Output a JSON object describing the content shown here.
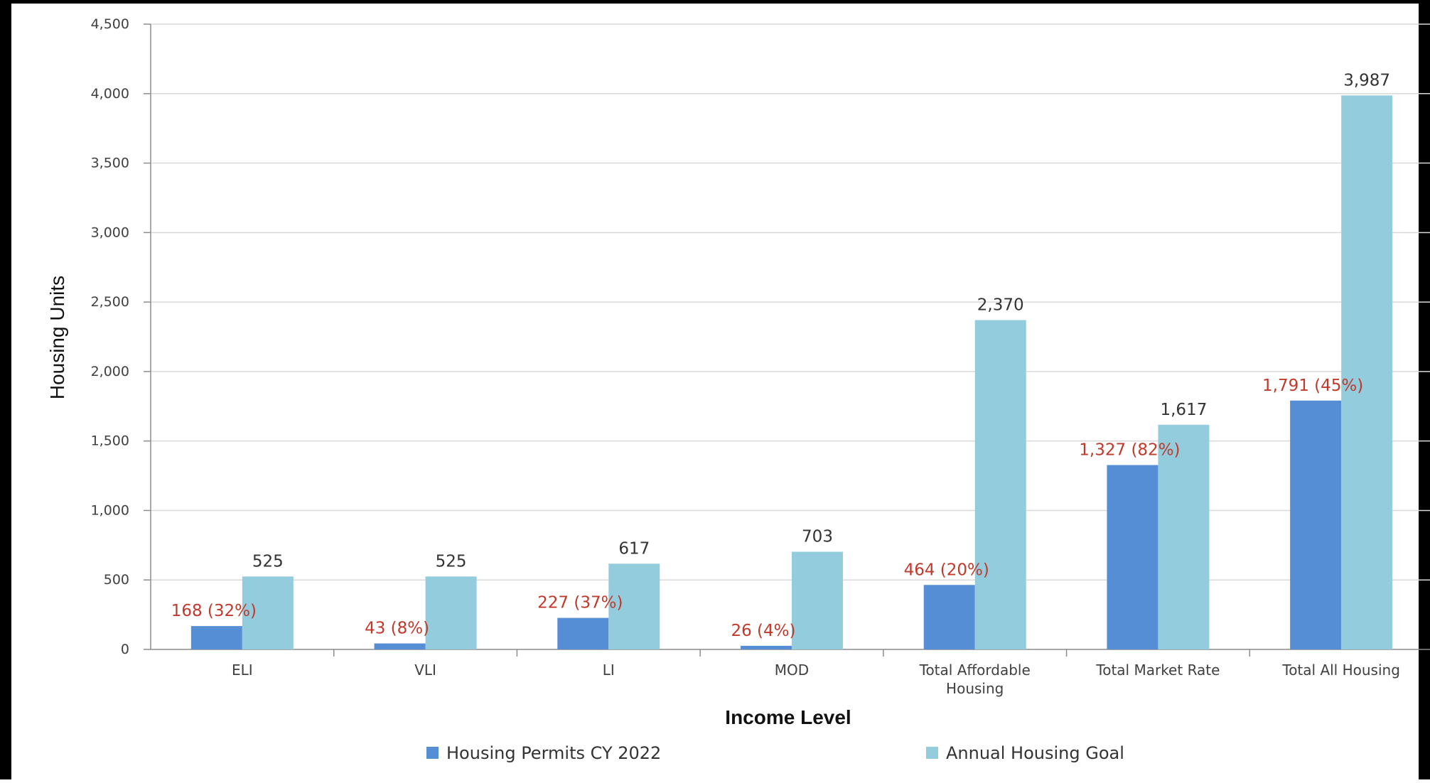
{
  "chart_data": {
    "type": "bar",
    "categories": [
      "ELI",
      "VLI",
      "LI",
      "MOD",
      "Total Affordable Housing",
      "Total Market Rate",
      "Total All Housing"
    ],
    "series": [
      {
        "name": "Housing Permits CY 2022",
        "values": [
          168,
          43,
          227,
          26,
          464,
          1327,
          1791
        ],
        "labels": [
          "168 (32%)",
          "43 (8%)",
          "227 (37%)",
          "26 (4%)",
          "464 (20%)",
          "1,327 (82%)",
          "1,791 (45%)"
        ],
        "color": "#568ed6"
      },
      {
        "name": "Annual Housing Goal",
        "values": [
          525,
          525,
          617,
          703,
          2370,
          1617,
          3987
        ],
        "labels": [
          "525",
          "525",
          "617",
          "703",
          "2,370",
          "1,617",
          "3,987"
        ],
        "color": "#93cddd"
      }
    ],
    "xlabel": "Income Level",
    "ylabel": "Housing Units",
    "ylim": [
      0,
      4500
    ],
    "yticks": [
      0,
      500,
      1000,
      1500,
      2000,
      2500,
      3000,
      3500,
      4000,
      4500
    ],
    "ytick_labels": [
      "0",
      "500",
      "1,000",
      "1,500",
      "2,000",
      "2,500",
      "3,000",
      "3,500",
      "4,000",
      "4,500"
    ],
    "grid": true,
    "legend_position": "bottom",
    "label_color": "#c0392b"
  }
}
